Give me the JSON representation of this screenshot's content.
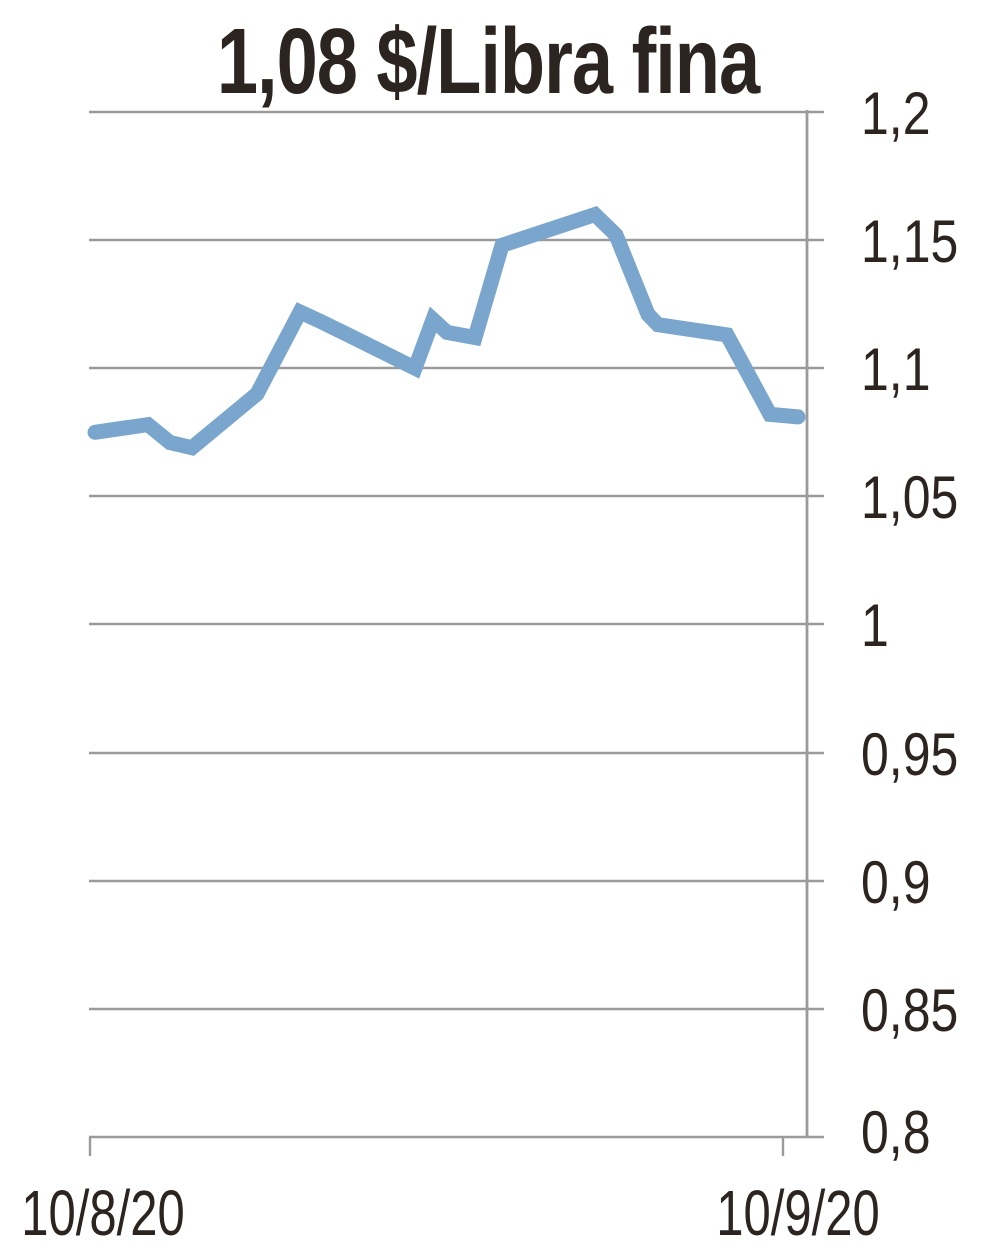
{
  "chart_data": {
    "type": "line",
    "title": "1,08 $/Libra fina",
    "current_value_label": "1,08",
    "unit": "$/Libra fina",
    "grid": true,
    "legend": "none",
    "y_axis": {
      "side": "right",
      "range": [
        0.8,
        1.2
      ],
      "tick_step": 0.05,
      "ticks": [
        {
          "label": "1,2",
          "value": 1.2
        },
        {
          "label": "1,15",
          "value": 1.15
        },
        {
          "label": "1,1",
          "value": 1.1
        },
        {
          "label": "1,05",
          "value": 1.05
        },
        {
          "label": "1",
          "value": 1.0
        },
        {
          "label": "0,95",
          "value": 0.95
        },
        {
          "label": "0,9",
          "value": 0.9
        },
        {
          "label": "0,85",
          "value": 0.85
        },
        {
          "label": "0,8",
          "value": 0.8
        }
      ]
    },
    "x_axis": {
      "ticks": [
        {
          "label": "10/8/20"
        },
        {
          "label": "10/9/20"
        }
      ]
    },
    "series": [
      {
        "color": "#7aa5cd",
        "points": [
          [
            95,
            1.075
          ],
          [
            148,
            1.078
          ],
          [
            170,
            1.071
          ],
          [
            192,
            1.069
          ],
          [
            257,
            1.09
          ],
          [
            300,
            1.122
          ],
          [
            322,
            1.118
          ],
          [
            348,
            1.113
          ],
          [
            415,
            1.1
          ],
          [
            433,
            1.119
          ],
          [
            447,
            1.114
          ],
          [
            475,
            1.112
          ],
          [
            502,
            1.148
          ],
          [
            595,
            1.16
          ],
          [
            616,
            1.152
          ],
          [
            648,
            1.121
          ],
          [
            658,
            1.117
          ],
          [
            727,
            1.113
          ],
          [
            770,
            1.082
          ],
          [
            798,
            1.081
          ]
        ]
      }
    ]
  },
  "colors": {
    "line": "#7aa5cd",
    "grid": "#9b9b9b",
    "text": "#2b2420",
    "background": "#ffffff"
  }
}
